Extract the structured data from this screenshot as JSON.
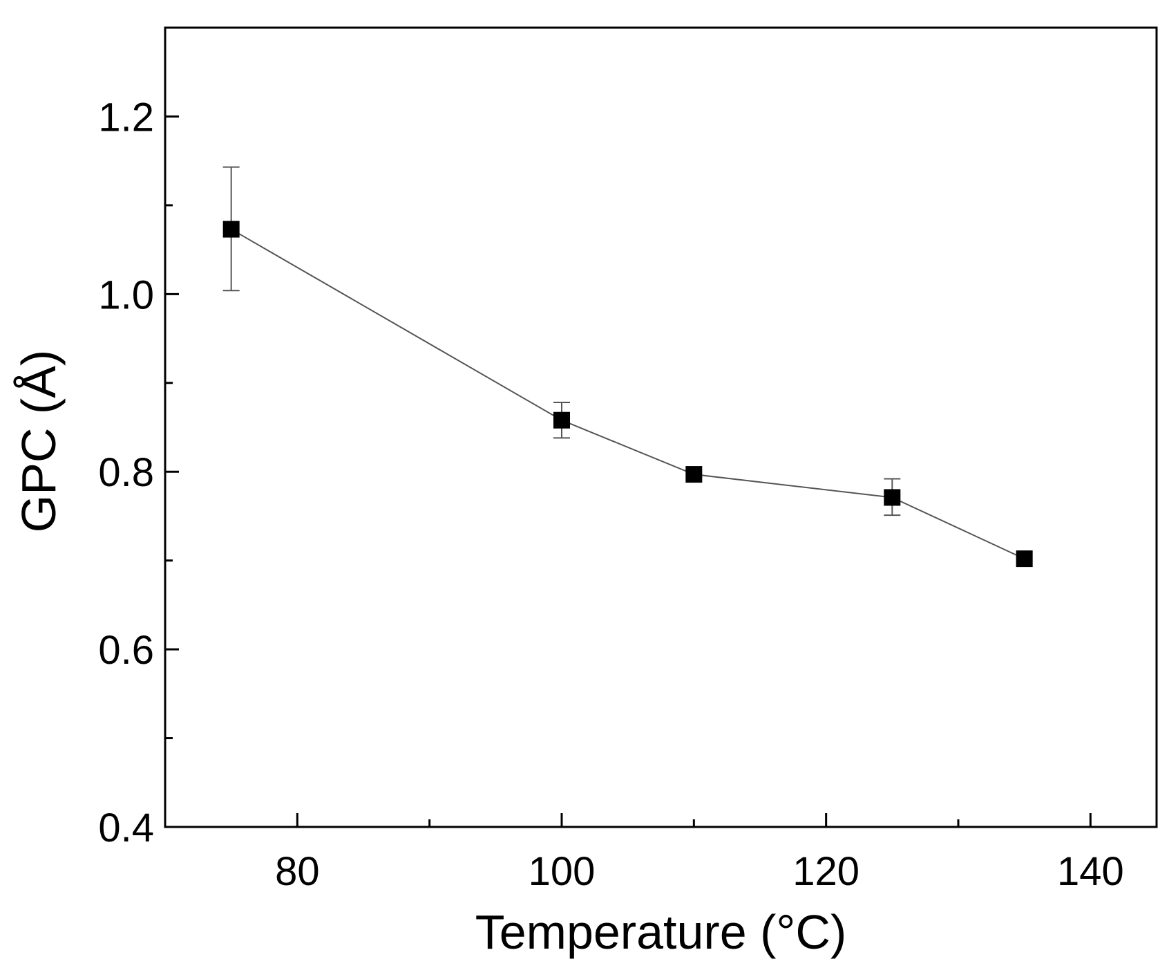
{
  "chart_data": {
    "type": "scatter",
    "title": "",
    "xlabel": "Temperature (°C)",
    "ylabel": "GPC (Å)",
    "xlim": [
      70,
      145
    ],
    "ylim": [
      0.4,
      1.3
    ],
    "x_ticks": [
      80,
      100,
      120,
      140
    ],
    "x_tick_labels": [
      "80",
      "100",
      "120",
      "140"
    ],
    "x_minor_ticks": [
      90,
      110,
      130
    ],
    "y_ticks": [
      0.4,
      0.6,
      0.8,
      1.0,
      1.2
    ],
    "y_tick_labels": [
      "0.4",
      "0.6",
      "0.8",
      "1.0",
      "1.2"
    ],
    "y_minor_ticks": [
      0.5,
      0.7,
      0.9,
      1.1
    ],
    "grid": false,
    "legend": "none",
    "series": [
      {
        "name": "GPC",
        "marker": "square",
        "connected": true,
        "color": "#000000",
        "line_color": "#555555",
        "x": [
          75,
          100,
          110,
          125,
          135
        ],
        "y": [
          1.073,
          0.858,
          0.797,
          0.771,
          0.702
        ],
        "y_err_low": [
          1.004,
          0.838,
          0.797,
          0.751,
          0.702
        ],
        "y_err_high": [
          1.143,
          0.878,
          0.797,
          0.792,
          0.702
        ]
      }
    ]
  }
}
